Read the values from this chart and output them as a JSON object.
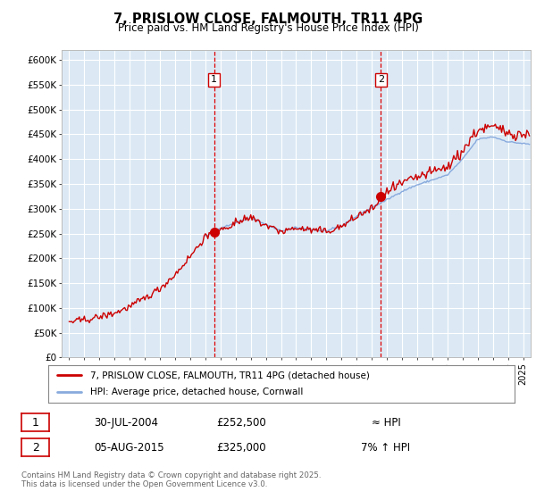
{
  "title": "7, PRISLOW CLOSE, FALMOUTH, TR11 4PG",
  "subtitle": "Price paid vs. HM Land Registry's House Price Index (HPI)",
  "ylabel_ticks": [
    "£0",
    "£50K",
    "£100K",
    "£150K",
    "£200K",
    "£250K",
    "£300K",
    "£350K",
    "£400K",
    "£450K",
    "£500K",
    "£550K",
    "£600K"
  ],
  "ylim": [
    0,
    620000
  ],
  "xlim_start": 1994.5,
  "xlim_end": 2025.5,
  "background_color": "#dce9f5",
  "grid_color": "#ffffff",
  "sale1_date": 2004.58,
  "sale1_price": 252500,
  "sale2_date": 2015.6,
  "sale2_price": 325000,
  "vline_color": "#dd0000",
  "marker_color": "#cc0000",
  "hpi_line_color": "#88aadd",
  "price_line_color": "#cc0000",
  "legend_label1": "7, PRISLOW CLOSE, FALMOUTH, TR11 4PG (detached house)",
  "legend_label2": "HPI: Average price, detached house, Cornwall",
  "annotation1_date": "30-JUL-2004",
  "annotation1_price": "£252,500",
  "annotation1_hpi": "≈ HPI",
  "annotation2_date": "05-AUG-2015",
  "annotation2_price": "£325,000",
  "annotation2_hpi": "7% ↑ HPI",
  "footer": "Contains HM Land Registry data © Crown copyright and database right 2025.\nThis data is licensed under the Open Government Licence v3.0."
}
